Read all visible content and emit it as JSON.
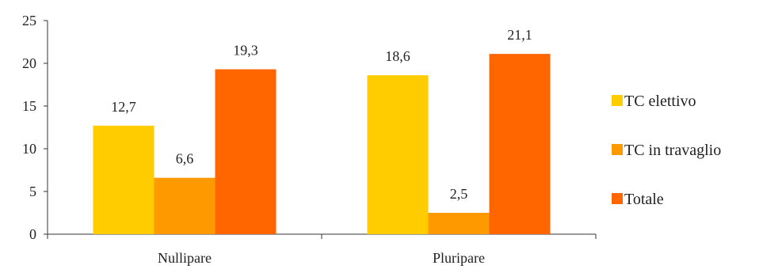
{
  "chart_data": {
    "type": "bar",
    "title": "",
    "xlabel": "",
    "ylabel": "",
    "categories": [
      "Nullipare",
      "Pluripare"
    ],
    "series": [
      {
        "name": "TC elettivo",
        "values": [
          12.7,
          18.6
        ],
        "labels": [
          "12,7",
          "18,6"
        ],
        "color": "#FFCC00"
      },
      {
        "name": "TC in travaglio",
        "values": [
          6.6,
          2.5
        ],
        "labels": [
          "6,6",
          "2,5"
        ],
        "color": "#FF9900"
      },
      {
        "name": "Totale",
        "values": [
          19.3,
          21.1
        ],
        "labels": [
          "19,3",
          "21,1"
        ],
        "color": "#FF6600"
      }
    ],
    "ylim": [
      0,
      25
    ],
    "yticks": [
      0,
      5,
      10,
      15,
      20,
      25
    ],
    "grid": false,
    "legend_position": "right"
  }
}
